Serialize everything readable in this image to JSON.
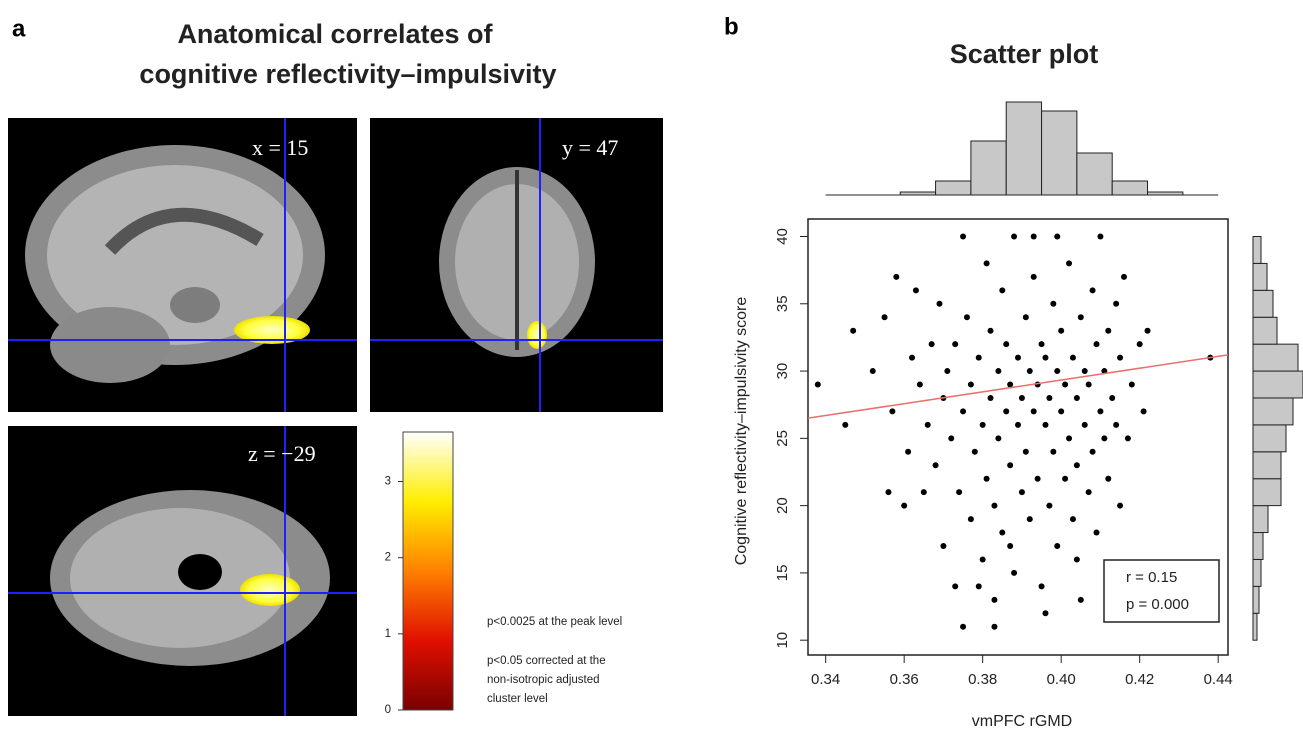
{
  "panel_a": {
    "label": "a",
    "title": [
      "Anatomical correlates of",
      "cognitive reflectivity–impulsivity"
    ],
    "slices": [
      {
        "label": "x = 15"
      },
      {
        "label": "y = 47"
      },
      {
        "label": "z = −29"
      }
    ],
    "colorbar": {
      "lim": [
        0,
        3.65
      ],
      "ticks": [
        0,
        1,
        2,
        3
      ]
    },
    "notes": [
      "p<0.0025 at the peak level",
      "p<0.05 corrected at the",
      "non-isotropic adjusted",
      "cluster level"
    ]
  },
  "chart_data": {
    "type": "scatter",
    "label": "b",
    "title": "Scatter plot",
    "x_label": "vmPFC  rGMD",
    "y_label": "Cognitive reflectivity–impulsivity score",
    "color": "#000000",
    "x": [
      0.338,
      0.345,
      0.347,
      0.352,
      0.355,
      0.356,
      0.357,
      0.358,
      0.36,
      0.361,
      0.362,
      0.363,
      0.364,
      0.365,
      0.366,
      0.367,
      0.368,
      0.369,
      0.37,
      0.37,
      0.371,
      0.372,
      0.373,
      0.373,
      0.374,
      0.375,
      0.375,
      0.376,
      0.377,
      0.377,
      0.378,
      0.379,
      0.38,
      0.38,
      0.381,
      0.381,
      0.382,
      0.382,
      0.383,
      0.383,
      0.384,
      0.384,
      0.385,
      0.385,
      0.386,
      0.386,
      0.387,
      0.387,
      0.388,
      0.388,
      0.389,
      0.389,
      0.39,
      0.39,
      0.391,
      0.391,
      0.392,
      0.392,
      0.393,
      0.393,
      0.394,
      0.394,
      0.395,
      0.395,
      0.396,
      0.396,
      0.397,
      0.397,
      0.398,
      0.398,
      0.399,
      0.399,
      0.4,
      0.4,
      0.401,
      0.401,
      0.402,
      0.402,
      0.403,
      0.403,
      0.404,
      0.404,
      0.405,
      0.405,
      0.406,
      0.406,
      0.407,
      0.407,
      0.408,
      0.408,
      0.409,
      0.409,
      0.41,
      0.41,
      0.411,
      0.411,
      0.412,
      0.412,
      0.413,
      0.414,
      0.414,
      0.415,
      0.415,
      0.416,
      0.417,
      0.418,
      0.42,
      0.421,
      0.422,
      0.438,
      0.375,
      0.393,
      0.399,
      0.383,
      0.396,
      0.379,
      0.404,
      0.387
    ],
    "values": [
      29,
      26,
      33,
      30,
      34,
      21,
      27,
      37,
      20,
      24,
      31,
      36,
      29,
      21,
      26,
      32,
      23,
      35,
      28,
      17,
      30,
      25,
      14,
      32,
      21,
      27,
      11,
      34,
      19,
      29,
      24,
      31,
      16,
      26,
      38,
      22,
      28,
      33,
      13,
      20,
      30,
      25,
      36,
      18,
      27,
      32,
      23,
      29,
      40,
      15,
      26,
      31,
      21,
      28,
      34,
      24,
      30,
      19,
      27,
      37,
      22,
      29,
      32,
      14,
      26,
      31,
      20,
      28,
      35,
      24,
      30,
      17,
      27,
      33,
      22,
      29,
      38,
      25,
      31,
      19,
      28,
      23,
      34,
      13,
      26,
      30,
      21,
      29,
      36,
      24,
      32,
      18,
      27,
      40,
      25,
      30,
      22,
      33,
      28,
      26,
      35,
      20,
      31,
      37,
      25,
      29,
      32,
      27,
      33,
      31,
      40,
      40,
      40,
      11,
      12,
      14,
      16,
      17
    ],
    "trend": {
      "x": [
        0.3355,
        0.4425
      ],
      "y": [
        26.5,
        31.2
      ],
      "color": "#e8706f"
    },
    "annotations": [
      "r = 0.15",
      "p = 0.000"
    ],
    "xlim": [
      0.3355,
      0.4425
    ],
    "ylim": [
      8.9,
      41.3
    ],
    "xticks": [
      0.34,
      0.36,
      0.38,
      {
        "value": 0.4,
        "label": "0.40"
      },
      0.42,
      0.44
    ],
    "yticks": [
      10,
      15,
      20,
      25,
      30,
      35,
      40
    ],
    "x_histogram": {
      "bins": [
        0.359,
        0.368,
        0.377,
        0.386,
        0.395,
        0.404,
        0.413,
        0.422,
        0.431
      ],
      "counts": [
        3,
        14,
        54,
        93,
        84,
        42,
        14,
        3
      ],
      "color": "#c8c8c8"
    },
    "y_histogram": {
      "bins": [
        10,
        12,
        14,
        16,
        18,
        20,
        22,
        24,
        26,
        28,
        30,
        32,
        34,
        36,
        38,
        40
      ],
      "counts": [
        4,
        6,
        8,
        10,
        15,
        28,
        28,
        33,
        40,
        50,
        45,
        24,
        20,
        14,
        8
      ],
      "color": "#c8c8c8"
    }
  }
}
